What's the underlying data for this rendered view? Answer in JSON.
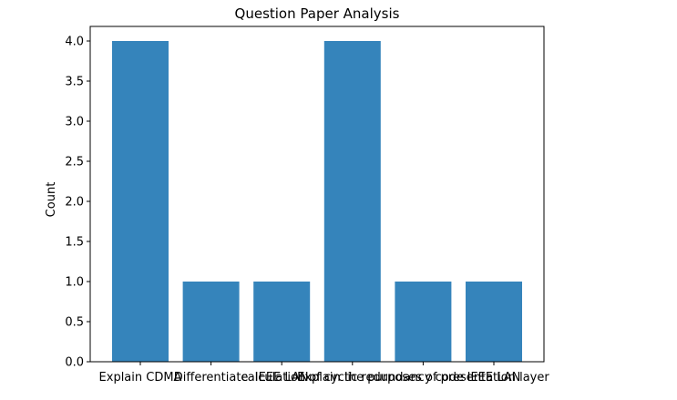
{
  "chart_data": {
    "type": "bar",
    "title": "Question Paper Analysis",
    "xlabel": "",
    "ylabel": "Count",
    "categories": [
      "Explain CDMA",
      "Differentiate",
      "IEEE LAN",
      "calculation of cyclic redundancy code",
      "Explain the purposes of presentation layer",
      "IEEE LAN"
    ],
    "values": [
      4,
      1,
      1,
      4,
      1,
      1
    ],
    "ylim": [
      0,
      4.0
    ],
    "yticks": [
      "0.0",
      "0.5",
      "1.0",
      "1.5",
      "2.0",
      "2.5",
      "3.0",
      "3.5",
      "4.0"
    ],
    "bar_color": "#3584bb",
    "grid": false,
    "legend": "none"
  }
}
